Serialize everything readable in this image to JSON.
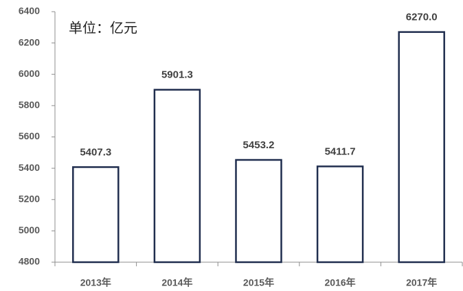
{
  "chart_data": {
    "type": "bar",
    "annotation": "单位：亿元",
    "categories": [
      "2013年",
      "2014年",
      "2015年",
      "2016年",
      "2017年"
    ],
    "values": [
      5407.3,
      5901.3,
      5453.2,
      5411.7,
      6270.0
    ],
    "value_labels": [
      "5407.3",
      "5901.3",
      "5453.2",
      "5411.7",
      "6270.0"
    ],
    "color": "#1f2d4e",
    "ylim": [
      4800,
      6400
    ],
    "yticks": [
      4800,
      5000,
      5200,
      5400,
      5600,
      5800,
      6000,
      6200,
      6400
    ],
    "grid": false
  }
}
